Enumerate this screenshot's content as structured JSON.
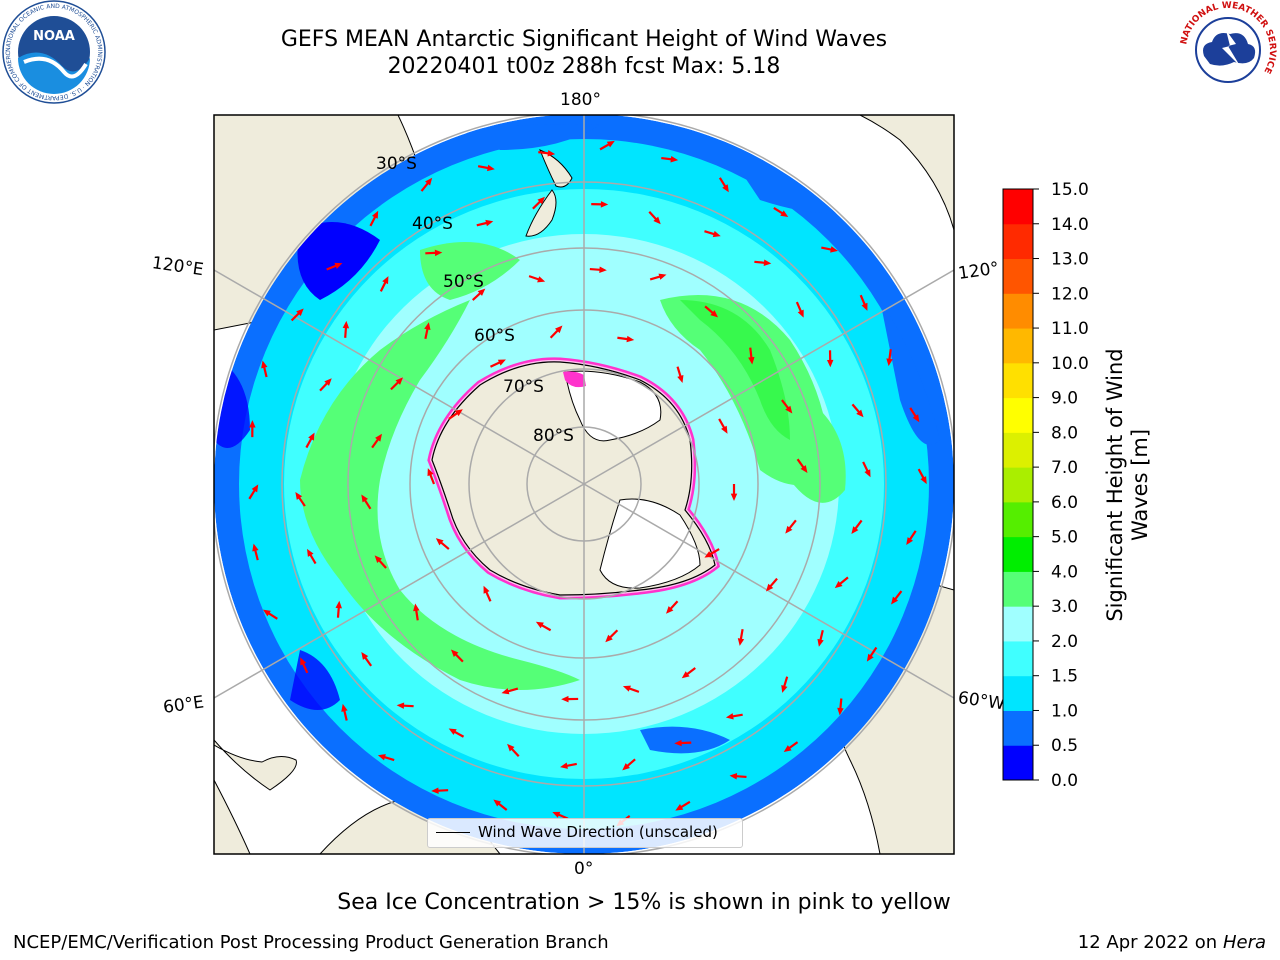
{
  "header": {
    "title_line1": "GEFS MEAN Antarctic Significant Height of Wind Waves",
    "title_line2": "20220401 t00z 288h fcst   Max: 5.18"
  },
  "map": {
    "projection": "south-polar-stereographic",
    "land_color": "#efecdc",
    "ice_shelf_color": "#ffffff",
    "longitude_labels": [
      "180°",
      "120°E",
      "120°",
      "60°E",
      "60°W",
      "0°"
    ],
    "latitude_labels": [
      "30°S",
      "40°S",
      "50°S",
      "60°S",
      "70°S",
      "80°S"
    ],
    "legend_label": "Wind Wave Direction (unscaled)",
    "arrow_color": "#ff0000"
  },
  "colorbar": {
    "label_line1": "Significant Height of Wind",
    "label_line2": "Waves [m]",
    "ticks": [
      "0.0",
      "0.5",
      "1.0",
      "1.5",
      "2.0",
      "3.0",
      "4.0",
      "5.0",
      "6.0",
      "7.0",
      "8.0",
      "9.0",
      "10.0",
      "11.0",
      "12.0",
      "13.0",
      "14.0",
      "15.0"
    ],
    "colors": [
      "#0000ff",
      "#0a6fff",
      "#00e5ff",
      "#40ffff",
      "#a0ffff",
      "#55ff77",
      "#00ee00",
      "#55ee00",
      "#aaee00",
      "#dcf000",
      "#ffff00",
      "#ffe000",
      "#ffb800",
      "#ff8c00",
      "#ff5500",
      "#ff2a00",
      "#ff0000"
    ]
  },
  "logos": {
    "noaa_text": "NOAA",
    "noaa_ring_text": "NATIONAL OCEANIC AND ATMOSPHERIC ADMINISTRATION · U.S. DEPARTMENT OF COMMERCE",
    "nws_ring_text": "NATIONAL WEATHER SERVICE"
  },
  "footer": {
    "note": "Sea Ice Concentration > 15% is shown in pink to yellow",
    "org": "NCEP/EMC/Verification Post Processing Product Generation Branch",
    "date": "12 Apr 2022 on ",
    "host": "Hera"
  }
}
